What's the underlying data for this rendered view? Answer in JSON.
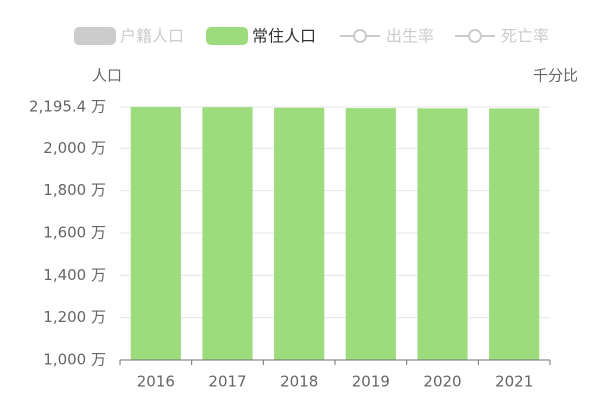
{
  "chart_data": {
    "type": "bar",
    "categories": [
      "2016",
      "2017",
      "2018",
      "2019",
      "2020",
      "2021"
    ],
    "series": [
      {
        "name": "常住人口",
        "color": "#9ddc7c",
        "values": [
          2195.4,
          2194.4,
          2191.7,
          2190.1,
          2189.0,
          2188.6
        ]
      }
    ],
    "legend_inactive": [
      {
        "name": "户籍人口",
        "icon": "rect"
      },
      {
        "name": "出生率",
        "icon": "line"
      },
      {
        "name": "死亡率",
        "icon": "line"
      }
    ],
    "legend_inactive_color": "#cccccc",
    "ylabel": "人口",
    "y2label": "千分比",
    "ylim": [
      1000,
      2195.4
    ],
    "yticks": [
      {
        "value": 1000,
        "label": "1,000 万"
      },
      {
        "value": 1200,
        "label": "1,200 万"
      },
      {
        "value": 1400,
        "label": "1,400 万"
      },
      {
        "value": 1600,
        "label": "1,600 万"
      },
      {
        "value": 1800,
        "label": "1,800 万"
      },
      {
        "value": 2000,
        "label": "2,000 万"
      },
      {
        "value": 2195.4,
        "label": "2,195.4 万"
      }
    ],
    "grid": true
  }
}
